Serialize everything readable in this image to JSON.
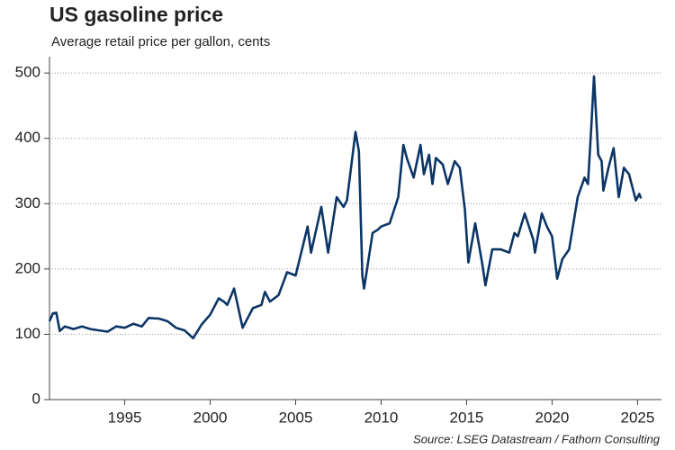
{
  "chart_data": {
    "type": "line",
    "title": "US gasoline price",
    "subtitle": "Average retail price per gallon, cents",
    "source": "Source: LSEG Datastream / Fathom Consulting",
    "x": [
      1990.6,
      1990.8,
      1991.0,
      1991.2,
      1991.5,
      1992.0,
      1992.5,
      1993.0,
      1993.5,
      1994.0,
      1994.5,
      1995.0,
      1995.5,
      1996.0,
      1996.4,
      1997.0,
      1997.5,
      1998.0,
      1998.5,
      1999.0,
      1999.5,
      2000.0,
      2000.5,
      2000.8,
      2001.0,
      2001.4,
      2001.9,
      2002.5,
      2003.0,
      2003.2,
      2003.5,
      2004.0,
      2004.5,
      2005.0,
      2005.7,
      2005.9,
      2006.5,
      2006.9,
      2007.4,
      2007.8,
      2008.0,
      2008.5,
      2008.7,
      2008.9,
      2009.0,
      2009.5,
      2009.8,
      2010.0,
      2010.5,
      2011.0,
      2011.3,
      2011.5,
      2011.9,
      2012.3,
      2012.5,
      2012.8,
      2013.0,
      2013.2,
      2013.6,
      2013.9,
      2014.3,
      2014.6,
      2014.9,
      2015.1,
      2015.5,
      2015.9,
      2016.1,
      2016.5,
      2017.0,
      2017.5,
      2017.8,
      2018.0,
      2018.4,
      2018.9,
      2019.0,
      2019.4,
      2019.7,
      2020.0,
      2020.3,
      2020.6,
      2021.0,
      2021.5,
      2021.9,
      2022.1,
      2022.3,
      2022.45,
      2022.7,
      2022.9,
      2023.0,
      2023.3,
      2023.6,
      2023.9,
      2024.2,
      2024.5,
      2024.9,
      2025.1,
      2025.2
    ],
    "series": [
      {
        "name": "US gasoline price",
        "color": "#0b3566",
        "values": [
          120,
          132,
          133,
          105,
          112,
          108,
          112,
          108,
          106,
          104,
          112,
          110,
          116,
          112,
          125,
          124,
          120,
          110,
          106,
          94,
          115,
          130,
          155,
          150,
          145,
          170,
          110,
          140,
          145,
          165,
          150,
          160,
          195,
          190,
          265,
          225,
          295,
          225,
          310,
          295,
          305,
          410,
          380,
          190,
          170,
          255,
          260,
          265,
          270,
          310,
          390,
          370,
          340,
          390,
          345,
          375,
          330,
          370,
          360,
          330,
          365,
          355,
          290,
          210,
          270,
          210,
          175,
          230,
          230,
          225,
          255,
          250,
          285,
          245,
          225,
          285,
          265,
          250,
          185,
          215,
          230,
          310,
          340,
          330,
          420,
          495,
          375,
          365,
          320,
          355,
          385,
          310,
          355,
          345,
          305,
          315,
          308
        ]
      }
    ],
    "xlim": [
      1990.6,
      2026.4
    ],
    "xticks": [
      1995,
      2000,
      2005,
      2010,
      2015,
      2020,
      2025
    ],
    "ylim": [
      0,
      525
    ],
    "yticks": [
      0,
      100,
      200,
      300,
      400,
      500
    ],
    "grid": true
  }
}
